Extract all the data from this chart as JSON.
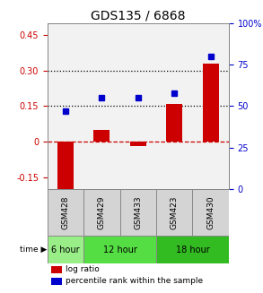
{
  "title": "GDS135 / 6868",
  "samples": [
    "GSM428",
    "GSM429",
    "GSM433",
    "GSM423",
    "GSM430"
  ],
  "log_ratio": [
    -0.2,
    0.05,
    -0.02,
    0.16,
    0.33
  ],
  "percentile_rank": [
    47,
    55,
    55,
    58,
    80
  ],
  "left_ylim": [
    -0.2,
    0.5
  ],
  "left_yticks": [
    -0.15,
    0.0,
    0.15,
    0.3,
    0.45
  ],
  "left_yticklabels": [
    "-0.15",
    "0",
    "0.15",
    "0.30",
    "0.45"
  ],
  "right_ylim": [
    0,
    100
  ],
  "right_yticks": [
    0,
    25,
    50,
    75,
    100
  ],
  "right_yticklabels": [
    "0",
    "25",
    "50",
    "75",
    "100%"
  ],
  "hline_dotted": [
    0.15,
    0.3
  ],
  "bar_color": "#cc0000",
  "dot_color": "#0000cc",
  "zero_line_color": "#cc0000",
  "plot_bg": "#f2f2f2",
  "time_groups": [
    {
      "label": "6 hour",
      "span": [
        0,
        1
      ],
      "color": "#99ee88"
    },
    {
      "label": "12 hour",
      "span": [
        1,
        3
      ],
      "color": "#55dd44"
    },
    {
      "label": "18 hour",
      "span": [
        3,
        5
      ],
      "color": "#33bb22"
    }
  ],
  "sample_bg": "#d4d4d4",
  "legend_bar_label": "log ratio",
  "legend_dot_label": "percentile rank within the sample",
  "time_label": "time",
  "title_fontsize": 10,
  "tick_fontsize": 7,
  "left_tick_color": "#cc0000",
  "right_tick_color": "#0000cc"
}
